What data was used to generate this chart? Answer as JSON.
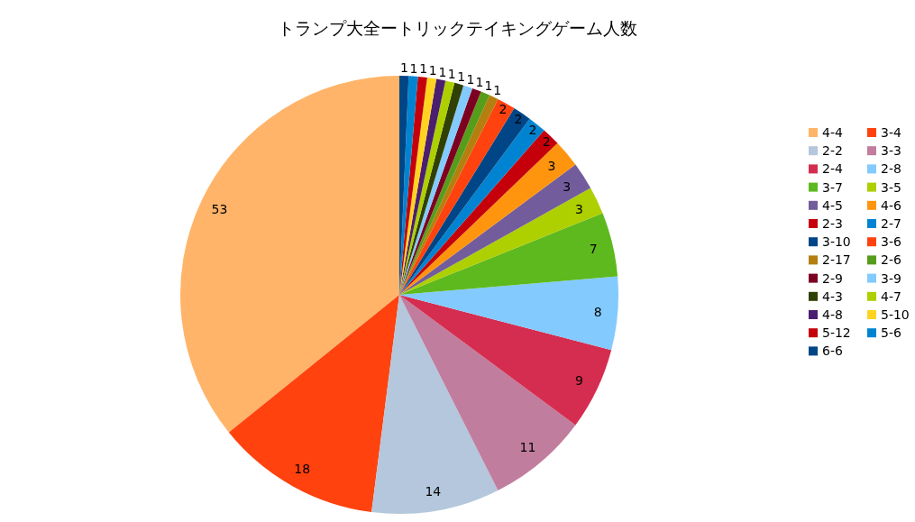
{
  "chart_data": {
    "type": "pie",
    "title": "トランプ大全ートリックテイキングゲーム人数",
    "categories": [
      "4-4",
      "3-4",
      "2-2",
      "3-3",
      "2-4",
      "2-8",
      "3-7",
      "3-5",
      "4-5",
      "4-6",
      "2-3",
      "2-7",
      "3-10",
      "3-6",
      "2-17",
      "2-6",
      "2-9",
      "3-9",
      "4-3",
      "4-7",
      "4-8",
      "5-10",
      "5-12",
      "5-6",
      "6-6"
    ],
    "values": [
      53,
      18,
      14,
      11,
      9,
      8,
      7,
      3,
      3,
      3,
      2,
      2,
      2,
      2,
      1,
      1,
      1,
      1,
      1,
      1,
      1,
      1,
      1,
      1,
      1
    ],
    "colors": [
      "#ffb469",
      "#ff420e",
      "#b4c7dc",
      "#c17d9e",
      "#d52d4f",
      "#83caff",
      "#5eb91e",
      "#aecf00",
      "#725c9c",
      "#ff950e",
      "#c5000b",
      "#0084d1",
      "#004586",
      "#ff420e",
      "#b47f0e",
      "#579d1c",
      "#7e0021",
      "#83caff",
      "#314004",
      "#aecf00",
      "#4b1f6f",
      "#ffd320",
      "#c5000b",
      "#0084d1",
      "#004586"
    ],
    "data_labels": true,
    "legend": "right"
  }
}
